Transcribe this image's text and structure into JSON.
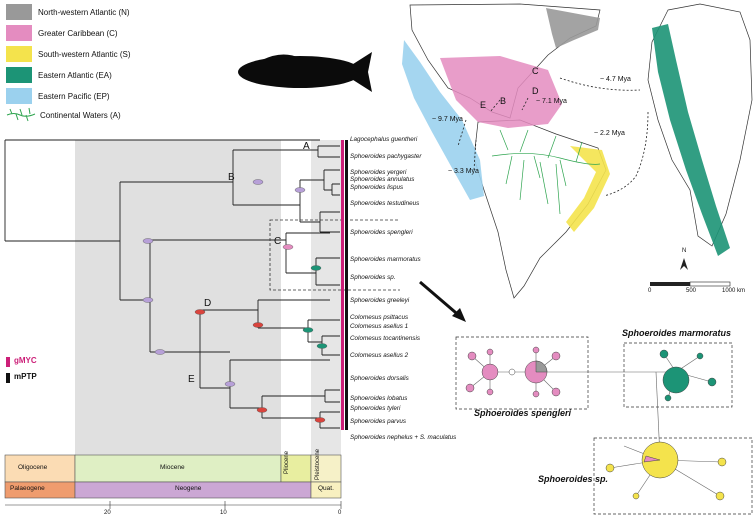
{
  "legend": [
    {
      "label": "North-western Atlantic (N)",
      "color": "#999999"
    },
    {
      "label": "Greater Caribbean (C)",
      "color": "#e48cc0"
    },
    {
      "label": "South-western Atlantic (S)",
      "color": "#f4e34c"
    },
    {
      "label": "Eastern Atlantic (EA)",
      "color": "#1c9476"
    },
    {
      "label": "Eastern Pacific (EP)",
      "color": "#9bd1ee"
    },
    {
      "label": "Continental Waters (A)",
      "color": "#2ea44f"
    }
  ],
  "taxa": [
    "Lagocephalus guentheri",
    "Sphoeroides pachygaster",
    "Sphoeroides yergeri",
    "Sphoeroides annulatus",
    "Sphoeroides lispus",
    "Sphoeroides testudineus",
    "Sphoeroides spengleri",
    "Sphoeroides marmoratus",
    "Sphoeroides sp.",
    "Sphoeroides greeleyi",
    "Colomesus psittacus",
    "Colomesus asellus 1",
    "Colomesus tocantinensis",
    "Colomesus asellus 2",
    "Sphoeroides dorsalis",
    "Sphoeroides lobatus",
    "Sphoeroides tyleri",
    "Sphoeroides parvus",
    "Sphoeroides nephelus + S. maculatus"
  ],
  "node_labels": [
    "A",
    "B",
    "C",
    "D",
    "E"
  ],
  "epochs": [
    "Oligocene",
    "Miocene",
    "Pliocene",
    "Pleistocene"
  ],
  "periods": [
    "Palaeogene",
    "Neogene",
    "Quat."
  ],
  "axis_ticks": [
    "20",
    "10",
    "0"
  ],
  "delim": {
    "gmyc": "gMYC",
    "mptp": "mPTP"
  },
  "map": {
    "region_letters": [
      "C",
      "B",
      "E",
      "D"
    ],
    "ages": [
      "~ 4.7 Mya",
      "~ 7.1 Mya",
      "~ 9.7 Mya",
      "~ 3.3 Mya",
      "~ 2.2 Mya"
    ],
    "compass": "N",
    "scale_ticks": [
      "0",
      "500",
      "1000 km"
    ]
  },
  "networks": {
    "spengleri": "Sphoeroides spengleri",
    "marmoratus": "Sphoeroides marmoratus",
    "sp": "Sphoeroides sp."
  }
}
